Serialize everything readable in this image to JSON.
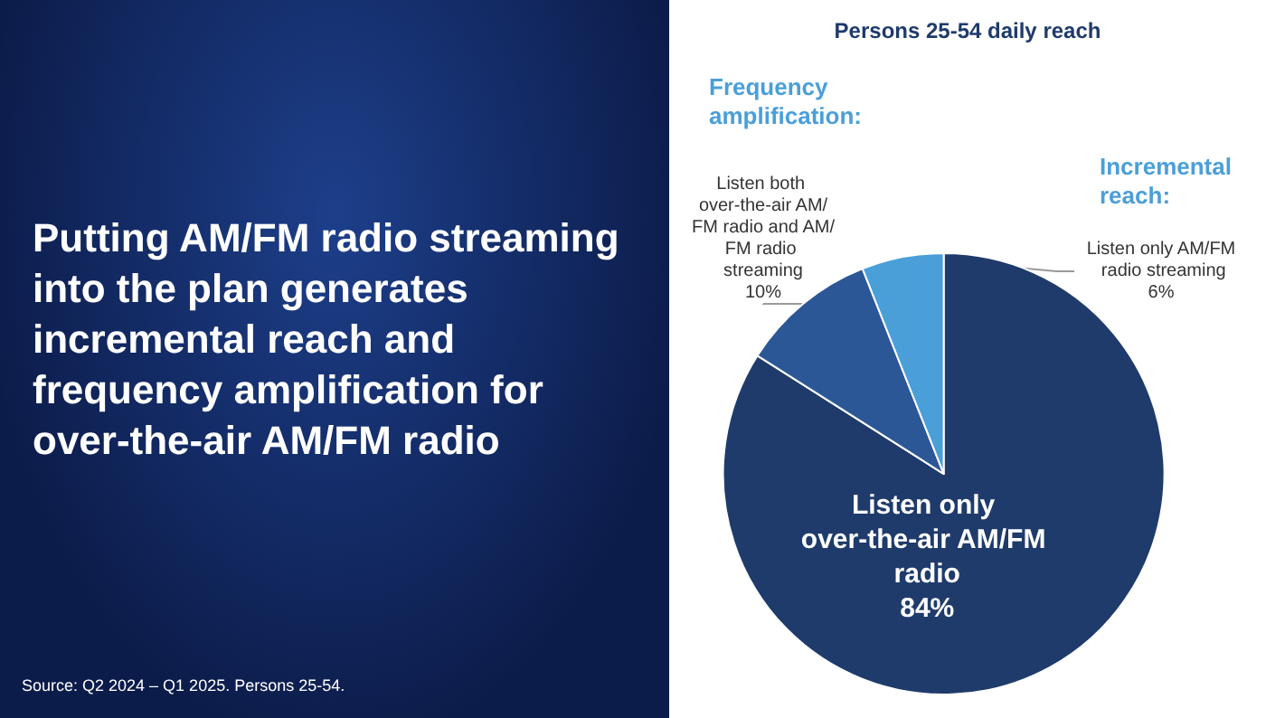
{
  "chart_data": {
    "type": "pie",
    "title": "Persons 25-54 daily reach",
    "categories": [
      "Listen only over-the-air AM/FM radio",
      "Listen both over-the-air AM/FM radio and AM/FM radio streaming",
      "Listen only AM/FM radio streaming"
    ],
    "values": [
      84,
      10,
      6
    ],
    "value_labels": [
      "84%",
      "10%",
      "6%"
    ],
    "colors": [
      "#1f3b6b",
      "#2c5796",
      "#4a9fd8"
    ],
    "annotations": [
      "Putting AM/FM radio streaming into the plan generates incremental reach and frequency amplification for over-the-air AM/FM radio",
      "Frequency amplification:",
      "Incremental reach:",
      "Source: Q2 2024 – Q1 2025. Persons 25-54."
    ],
    "legend": false
  }
}
